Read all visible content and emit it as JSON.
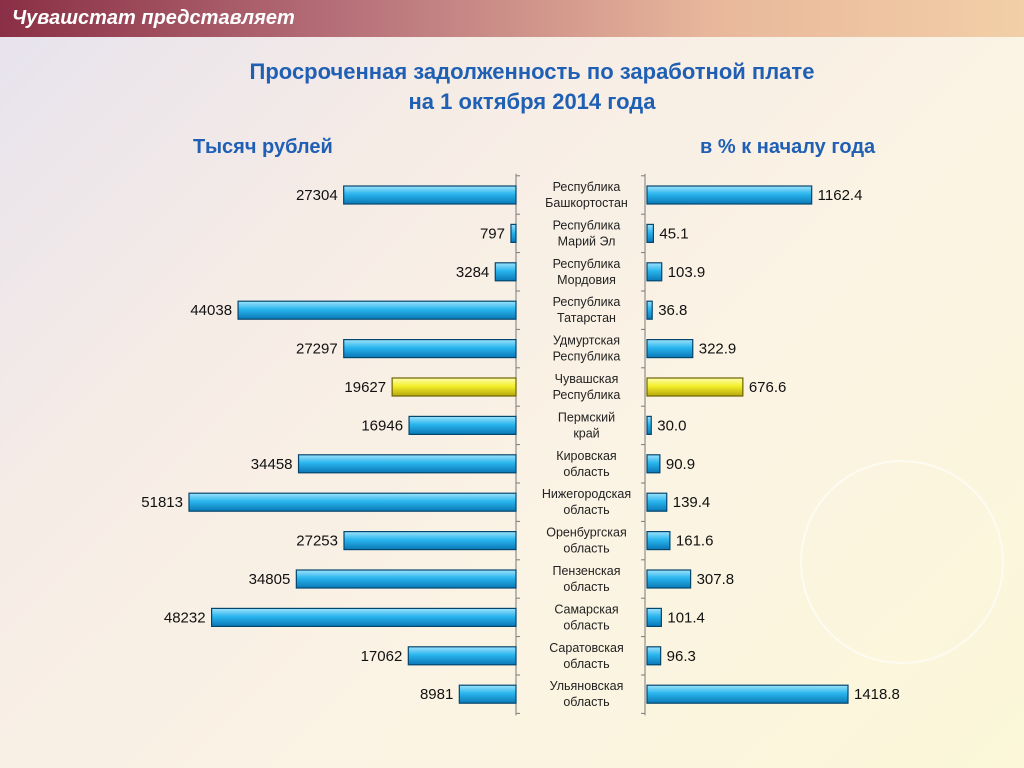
{
  "header": {
    "title": "Чувашстат представляет"
  },
  "chart_data": {
    "type": "bar",
    "title_line1": "Просроченная задолженность по заработной плате",
    "title_line2": "на 1 октября 2014 года",
    "left_label": "Тысяч рублей",
    "right_label": "в % к началу года",
    "categories": [
      [
        "Республика",
        "Башкортостан"
      ],
      [
        "Республика",
        "Марий Эл"
      ],
      [
        "Республика",
        "Мордовия"
      ],
      [
        "Республика",
        "Татарстан"
      ],
      [
        "Удмуртская",
        "Республика"
      ],
      [
        "Чувашская",
        "Республика"
      ],
      [
        "Пермский",
        "край"
      ],
      [
        "Кировская",
        "область"
      ],
      [
        "Нижегородская",
        "область"
      ],
      [
        "Оренбургская",
        "область"
      ],
      [
        "Пензенская",
        "область"
      ],
      [
        "Самарская",
        "область"
      ],
      [
        "Саратовская",
        "область"
      ],
      [
        "Ульяновская",
        "область"
      ]
    ],
    "series": [
      {
        "values": [
          27304,
          797,
          3284,
          44038,
          27297,
          19627,
          16946,
          34458,
          51813,
          27253,
          34805,
          48232,
          17062,
          8981
        ],
        "labels": [
          "27304",
          "797",
          "3284",
          "44038",
          "27297",
          "19627",
          "16946",
          "34458",
          "51813",
          "27253",
          "34805",
          "48232",
          "17062",
          "8981"
        ]
      },
      {
        "values": [
          1162.4,
          45.1,
          103.9,
          36.8,
          322.9,
          676.6,
          30.0,
          90.9,
          139.4,
          161.6,
          307.8,
          101.4,
          96.3,
          1418.8
        ],
        "labels": [
          "1162.4",
          "45.1",
          "103.9",
          "36.8",
          "322.9",
          "676.6",
          "30.0",
          "90.9",
          "139.4",
          "161.6",
          "307.8",
          "101.4",
          "96.3",
          "1418.8"
        ]
      }
    ],
    "highlight_index": 5,
    "colors": {
      "bar": "#1ea9e6",
      "highlight": "#f2ef2a",
      "title": "#1f5fb4"
    }
  }
}
